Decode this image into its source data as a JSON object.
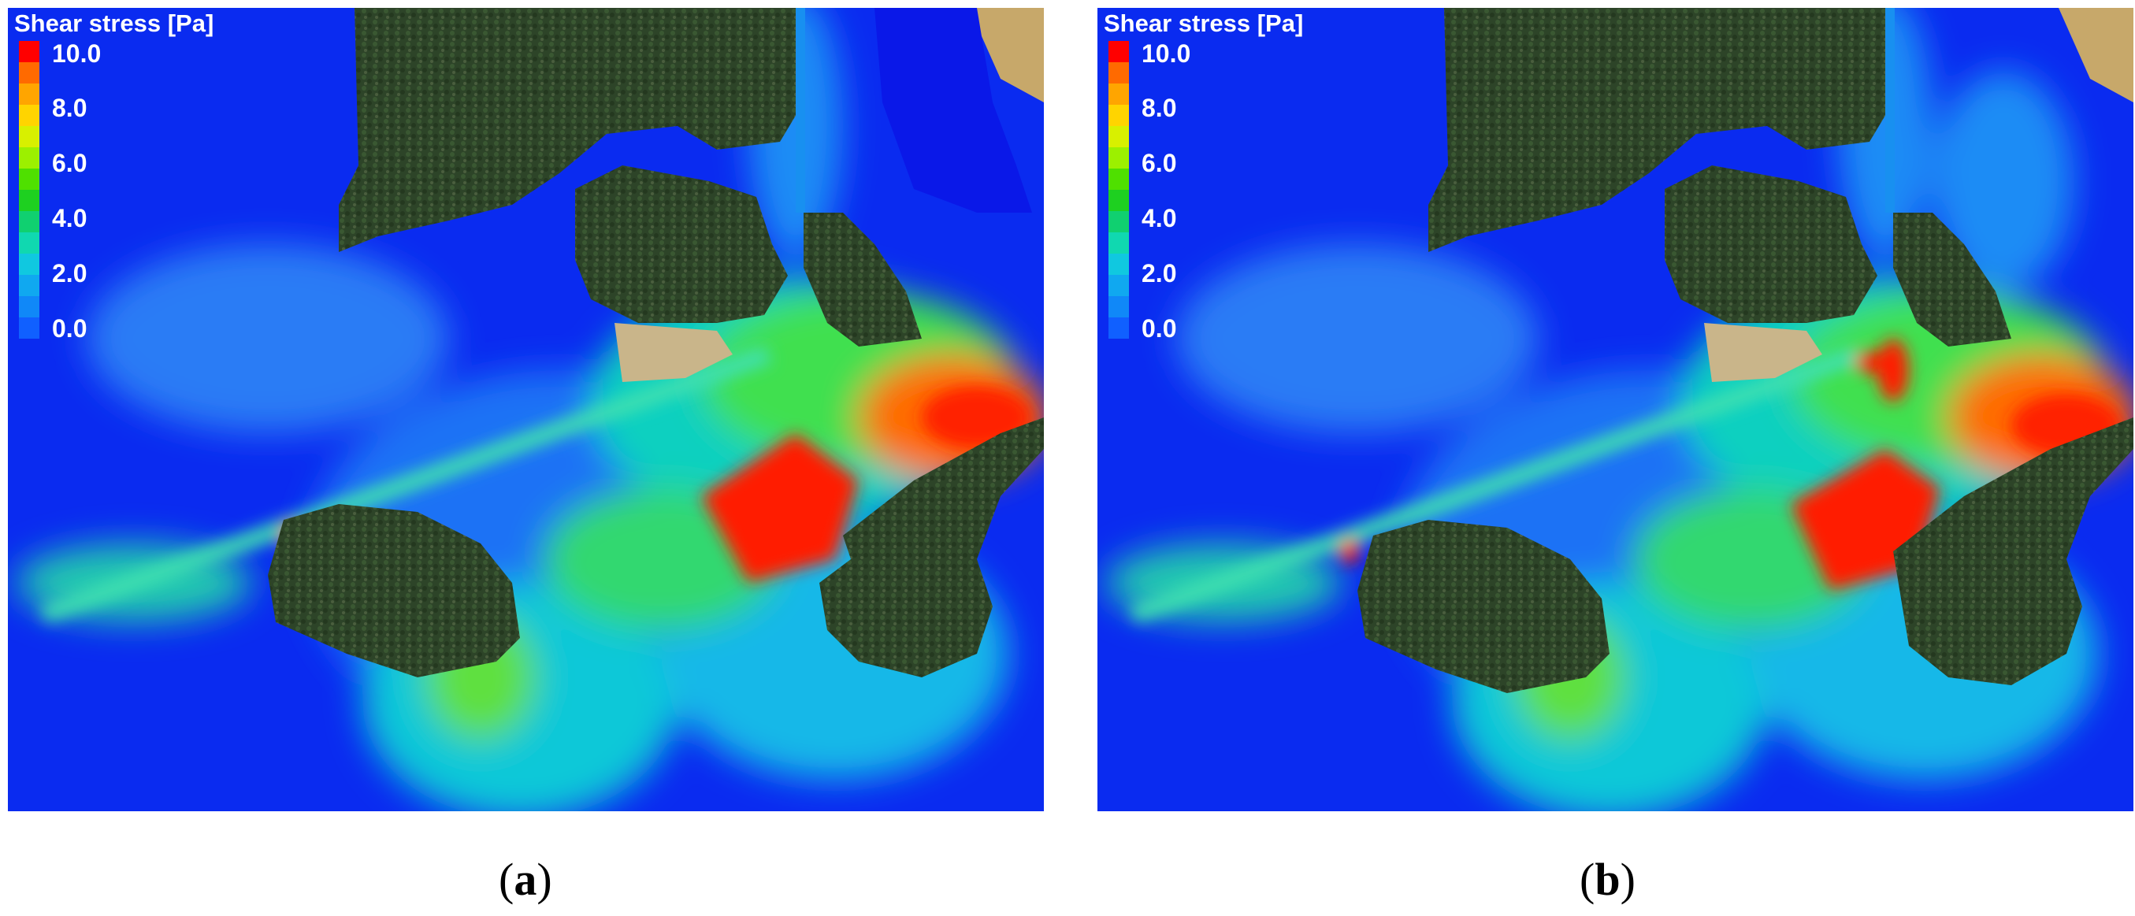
{
  "figure": {
    "panels": [
      {
        "legend_title": "Shear stress [Pa]",
        "legend_ticks": [
          "10.0",
          "8.0",
          "6.0",
          "4.0",
          "2.0",
          "0.0"
        ],
        "caption_open": "(",
        "caption_letter": "a",
        "caption_close": ")"
      },
      {
        "legend_title": "Shear stress [Pa]",
        "legend_ticks": [
          "10.0",
          "8.0",
          "6.0",
          "4.0",
          "2.0",
          "0.0"
        ],
        "caption_open": "(",
        "caption_letter": "b",
        "caption_close": ")"
      }
    ],
    "colorscale": [
      "#ff0000",
      "#ff6a00",
      "#ffa500",
      "#ffd400",
      "#d8f000",
      "#9cf000",
      "#4fe000",
      "#1ed020",
      "#10d070",
      "#10d8b0",
      "#10c8e0",
      "#10a8f0",
      "#1088f8",
      "#1060ff",
      "#0838ff",
      "#0a10f0"
    ],
    "colors": {
      "water_deep": "#0a2bf0",
      "land": "#2f4a2a",
      "high_stress": "#ff1a00"
    }
  }
}
